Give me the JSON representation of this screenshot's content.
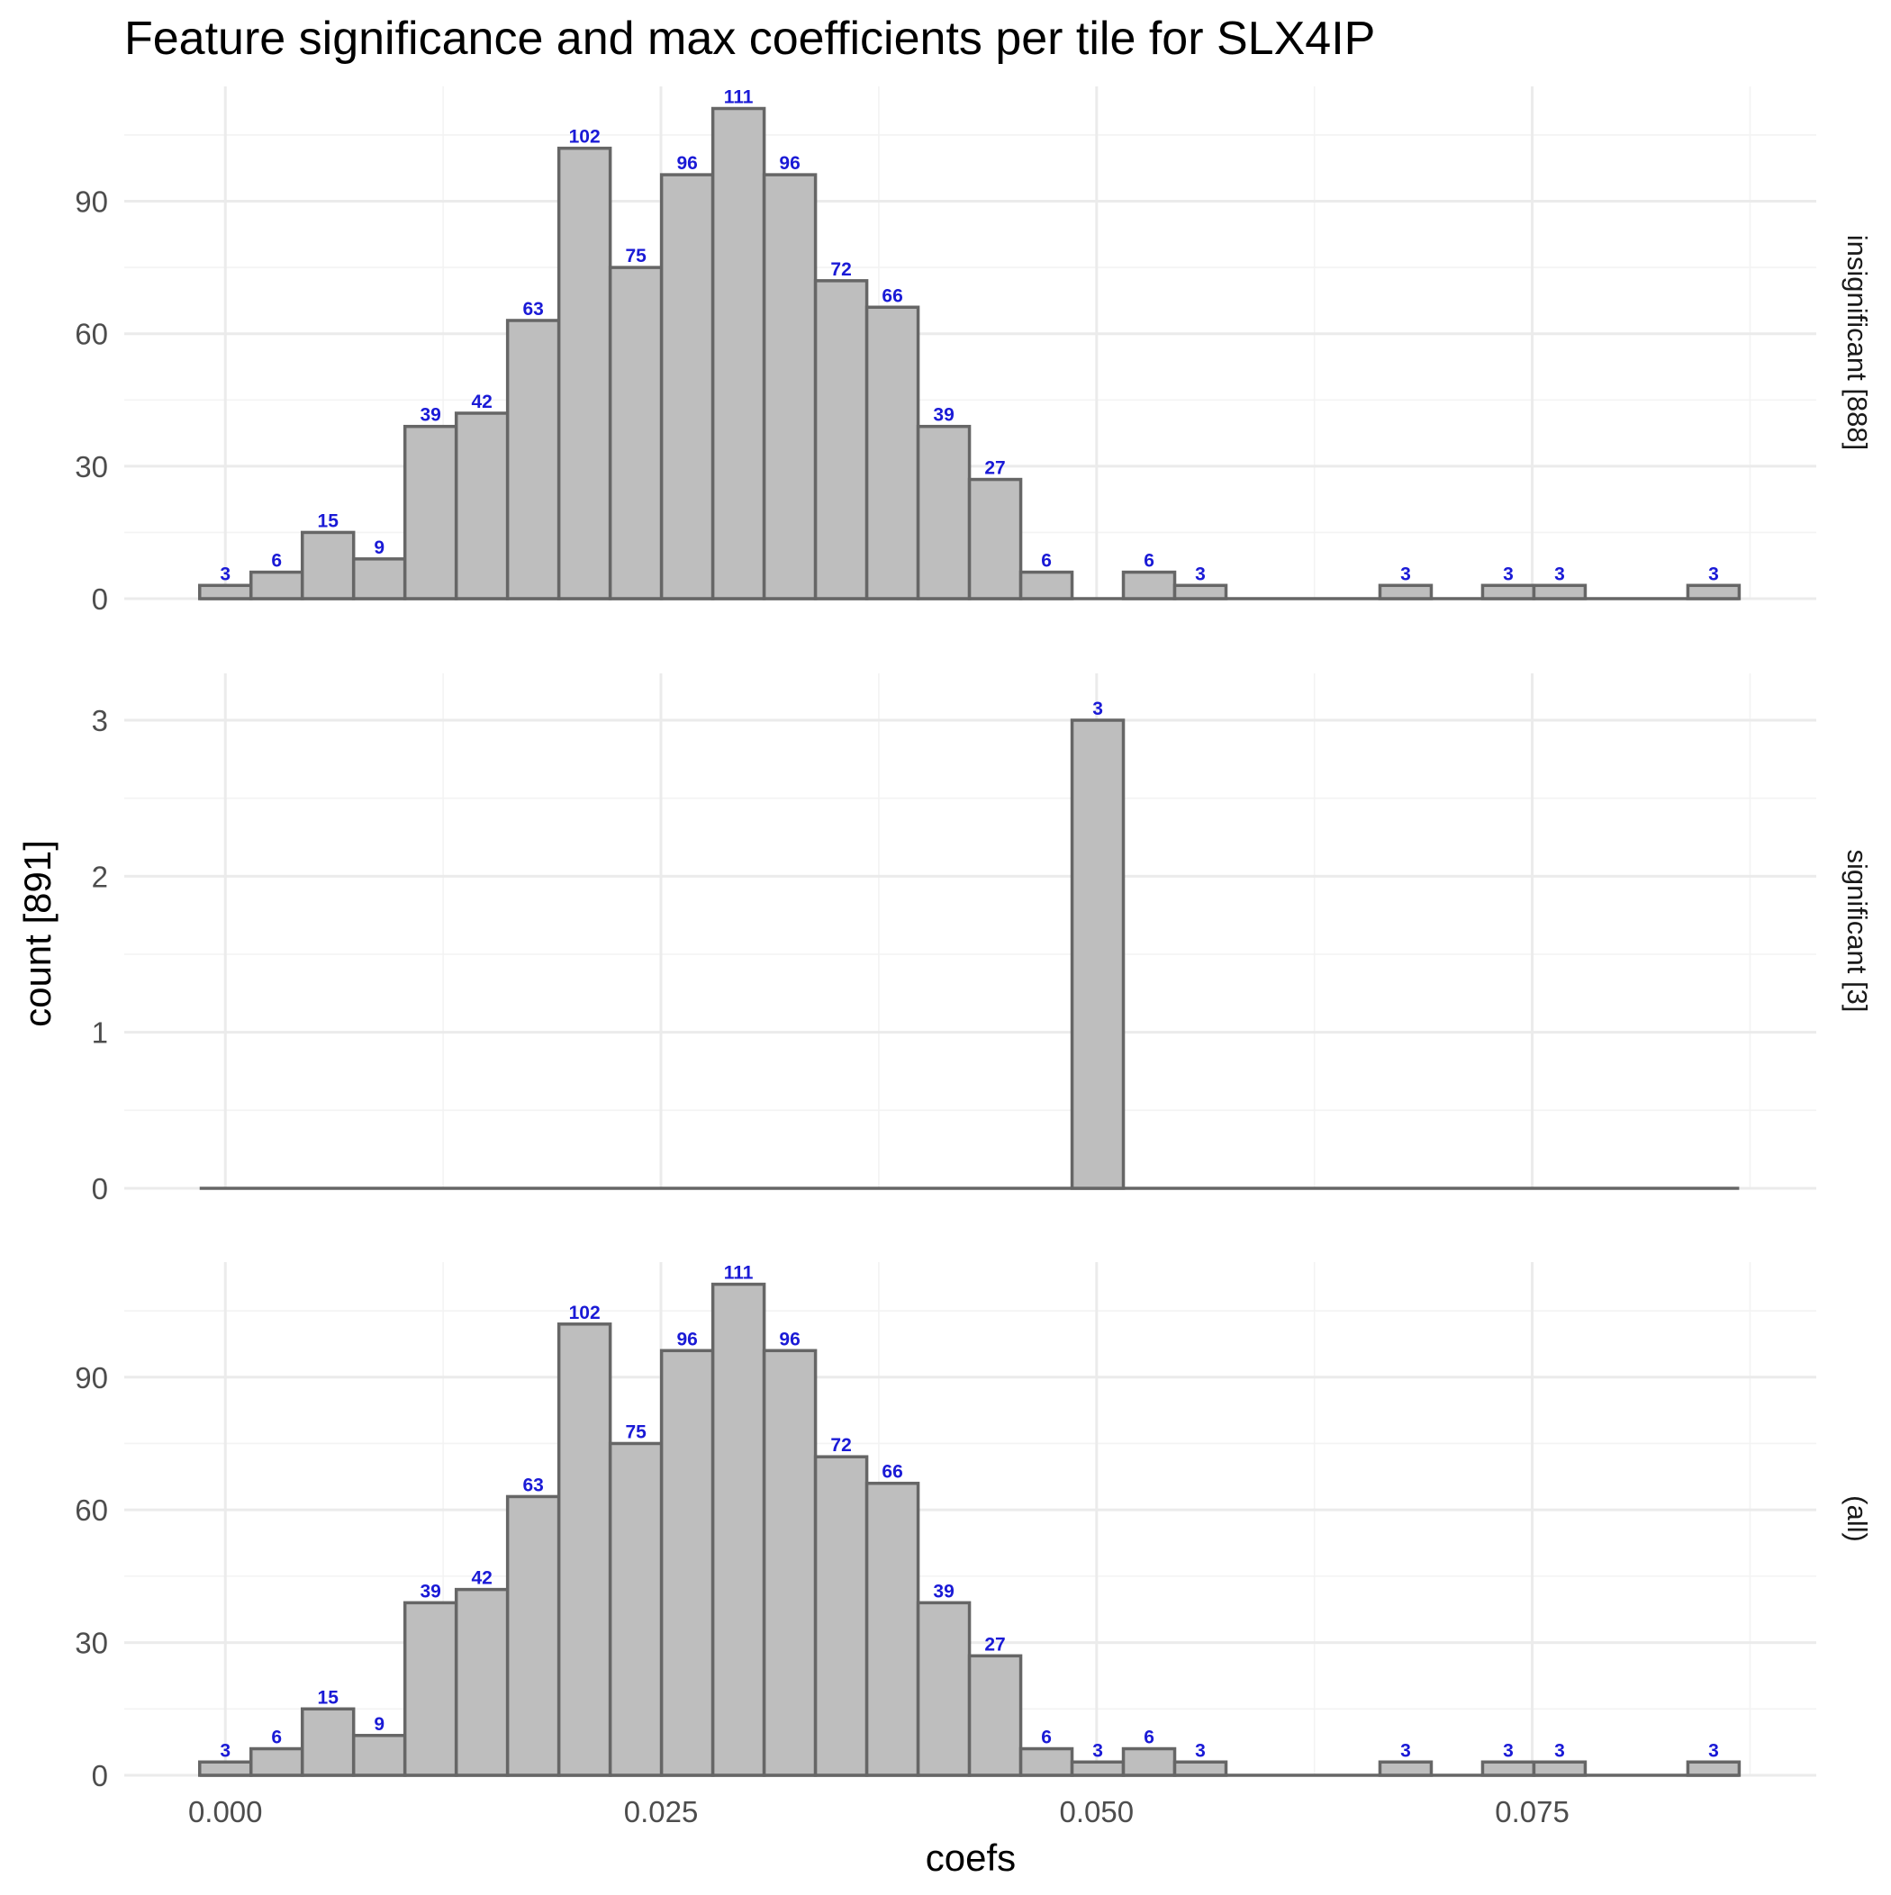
{
  "chart_data": {
    "type": "bar",
    "title": "Feature significance and max coefficients per tile for SLX4IP",
    "xlabel": "coefs",
    "ylabel": "count [891]",
    "xlim": [
      -0.0058,
      0.0913
    ],
    "x_ticks": [
      {
        "value": 0.0,
        "label": "0.000"
      },
      {
        "value": 0.025,
        "label": "0.025"
      },
      {
        "value": 0.05,
        "label": "0.050"
      },
      {
        "value": 0.075,
        "label": "0.075"
      }
    ],
    "bin_width": 0.002945,
    "bin_start": -0.001473,
    "bar_fill": "#bebebe",
    "bar_outline": "#666666",
    "label_color": "#1a1ad6",
    "grid": true,
    "facets": [
      {
        "strip": "insignificant [888]",
        "ylim": [
          0,
          116
        ],
        "y_ticks": [
          0,
          30,
          60,
          90
        ],
        "values": [
          3,
          6,
          15,
          9,
          39,
          42,
          63,
          102,
          75,
          96,
          111,
          96,
          72,
          66,
          39,
          27,
          6,
          0,
          6,
          3,
          0,
          0,
          0,
          3,
          0,
          3,
          3,
          0,
          0,
          3
        ],
        "labels": [
          "3",
          "6",
          "15",
          "9",
          "39",
          "42",
          "63",
          "102",
          "75",
          "96",
          "111",
          "96",
          "72",
          "66",
          "39",
          "27",
          "6",
          "",
          "6",
          "3",
          "",
          "",
          "",
          "3",
          "",
          "3",
          "3",
          "",
          "",
          "3"
        ]
      },
      {
        "strip": "significant [3]",
        "ylim": [
          0,
          3.3
        ],
        "y_ticks": [
          0,
          1,
          2,
          3
        ],
        "values": [
          0,
          0,
          0,
          0,
          0,
          0,
          0,
          0,
          0,
          0,
          0,
          0,
          0,
          0,
          0,
          0,
          0,
          3,
          0,
          0,
          0,
          0,
          0,
          0,
          0,
          0,
          0,
          0,
          0,
          0
        ],
        "labels": [
          "",
          "",
          "",
          "",
          "",
          "",
          "",
          "",
          "",
          "",
          "",
          "",
          "",
          "",
          "",
          "",
          "",
          "3",
          "",
          "",
          "",
          "",
          "",
          "",
          "",
          "",
          "",
          "",
          "",
          ""
        ]
      },
      {
        "strip": "(all)",
        "ylim": [
          0,
          116
        ],
        "y_ticks": [
          0,
          30,
          60,
          90
        ],
        "values": [
          3,
          6,
          15,
          9,
          39,
          42,
          63,
          102,
          75,
          96,
          111,
          96,
          72,
          66,
          39,
          27,
          6,
          3,
          6,
          3,
          0,
          0,
          0,
          3,
          0,
          3,
          3,
          0,
          0,
          3
        ],
        "labels": [
          "3",
          "6",
          "15",
          "9",
          "39",
          "42",
          "63",
          "102",
          "75",
          "96",
          "111",
          "96",
          "72",
          "66",
          "39",
          "27",
          "6",
          "3",
          "6",
          "3",
          "",
          "",
          "",
          "3",
          "",
          "3",
          "3",
          "",
          "",
          "3"
        ]
      }
    ]
  }
}
